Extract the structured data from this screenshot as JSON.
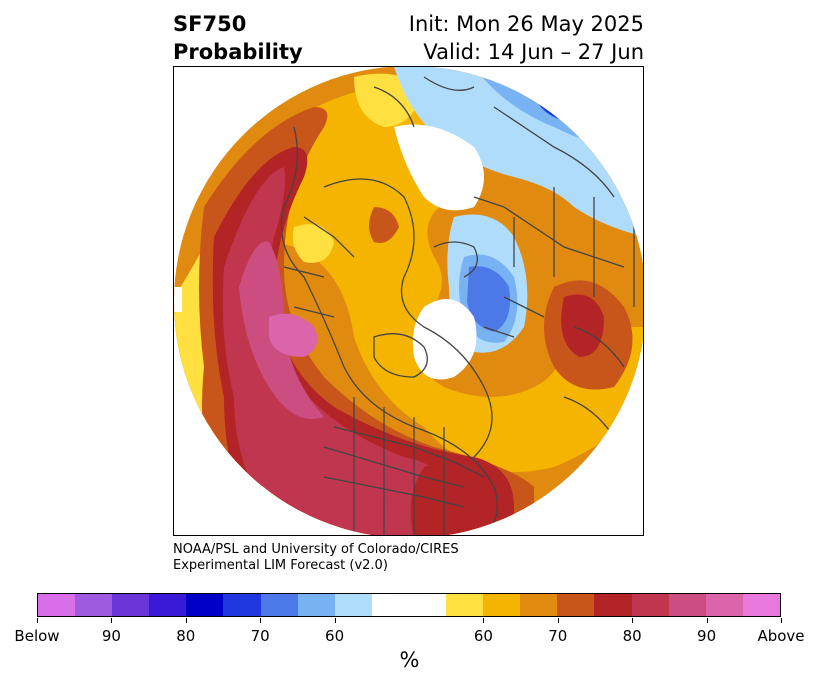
{
  "header": {
    "title_line1": "SF750",
    "title_line2": "Probability",
    "init": "Init: Mon 26 May 2025",
    "valid": "Valid: 14 Jun – 27 Jun"
  },
  "credit": {
    "line1": "NOAA/PSL and University of Colorado/CIRES",
    "line2": "Experimental LIM Forecast (v2.0)"
  },
  "colorbar": {
    "colors": [
      "#d86fe8",
      "#a05ae0",
      "#6a36d8",
      "#3a1ad8",
      "#0000c8",
      "#2038e0",
      "#4d78e8",
      "#78b2f2",
      "#aedcfa",
      "#ffffff",
      "#ffffff",
      "#ffe040",
      "#f4b400",
      "#e08a10",
      "#c8561a",
      "#b22426",
      "#c0364e",
      "#cc4e80",
      "#dc64aa",
      "#e878dc"
    ],
    "tick_labels": [
      "Below",
      "90",
      "80",
      "70",
      "60",
      "60",
      "70",
      "80",
      "90",
      "Above"
    ],
    "unit": "%"
  },
  "map": {
    "projection": "north-polar-stereographic",
    "palette": {
      "light_yellow": "#ffe040",
      "yellow": "#f4b400",
      "orange": "#e08a10",
      "dark_orange": "#c8561a",
      "red": "#b22426",
      "crimson": "#c0364e",
      "rose": "#cc4e80",
      "pink": "#dc64aa",
      "pale_blue": "#aedcfa",
      "light_blue": "#78b2f2",
      "blue": "#4d78e8",
      "mid_blue": "#2038e0",
      "border": "#444444"
    }
  }
}
